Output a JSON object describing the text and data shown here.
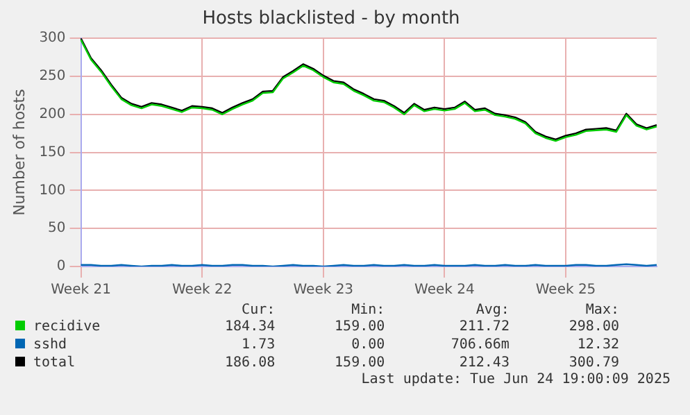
{
  "chart_data": {
    "type": "line",
    "title": "Hosts blacklisted - by month",
    "ylabel": "Number of hosts",
    "categories": [
      "Week 21",
      null,
      null,
      null,
      null,
      null,
      null,
      null,
      null,
      null,
      null,
      null,
      "Week 22",
      null,
      null,
      null,
      null,
      null,
      null,
      null,
      null,
      null,
      null,
      null,
      "Week 23",
      null,
      null,
      null,
      null,
      null,
      null,
      null,
      null,
      null,
      null,
      null,
      "Week 24",
      null,
      null,
      null,
      null,
      null,
      null,
      null,
      null,
      null,
      null,
      null,
      "Week 25",
      null,
      null,
      null,
      null,
      null,
      null,
      null,
      null,
      null
    ],
    "ylim": [
      0,
      300
    ],
    "yticks": [
      0,
      50,
      100,
      150,
      200,
      250,
      300
    ],
    "grid": true,
    "legend": "bottom",
    "marker": "none",
    "line_style": "solid",
    "series": [
      {
        "name": "recidive",
        "color": "#00cc00",
        "values": [
          298,
          272,
          256,
          237,
          220,
          212,
          208,
          213,
          211,
          207,
          203,
          209,
          208,
          206,
          200,
          207,
          213,
          218,
          228,
          229,
          247,
          255,
          264,
          258,
          249,
          242,
          240,
          231,
          225,
          218,
          216,
          209,
          200,
          212,
          204,
          207,
          205,
          207,
          215,
          204,
          206,
          199,
          197,
          194,
          188,
          175,
          169,
          165,
          170,
          173,
          178,
          179,
          180,
          177,
          199,
          185,
          180,
          184
        ]
      },
      {
        "name": "sshd",
        "color": "#0066b3",
        "values": [
          2,
          2,
          1,
          1,
          2,
          1,
          0,
          1,
          1,
          2,
          1,
          1,
          2,
          1,
          1,
          2,
          2,
          1,
          1,
          0,
          1,
          2,
          1,
          1,
          0,
          1,
          2,
          1,
          1,
          2,
          1,
          1,
          2,
          1,
          1,
          2,
          1,
          1,
          1,
          2,
          1,
          1,
          2,
          1,
          1,
          2,
          1,
          1,
          1,
          2,
          2,
          1,
          1,
          2,
          3,
          2,
          1,
          2
        ]
      },
      {
        "name": "total",
        "color": "#000000",
        "values": [
          300,
          274,
          258,
          239,
          222,
          214,
          210,
          215,
          213,
          209,
          205,
          211,
          210,
          208,
          202,
          209,
          215,
          220,
          230,
          231,
          249,
          257,
          266,
          260,
          251,
          244,
          242,
          233,
          227,
          220,
          218,
          211,
          202,
          214,
          206,
          209,
          207,
          209,
          217,
          206,
          208,
          201,
          199,
          196,
          190,
          177,
          171,
          167,
          172,
          175,
          180,
          181,
          182,
          179,
          201,
          187,
          182,
          186
        ]
      }
    ],
    "annotations": [
      "Cur:",
      "Min:",
      "Avg:",
      "Max:",
      "184.34",
      "159.00",
      "211.72",
      "298.00",
      "1.73",
      "0.00",
      "706.66m",
      "12.32",
      "186.08",
      "159.00",
      "212.43",
      "300.79",
      "Last update: Tue Jun 24 19:00:09 2025"
    ]
  }
}
